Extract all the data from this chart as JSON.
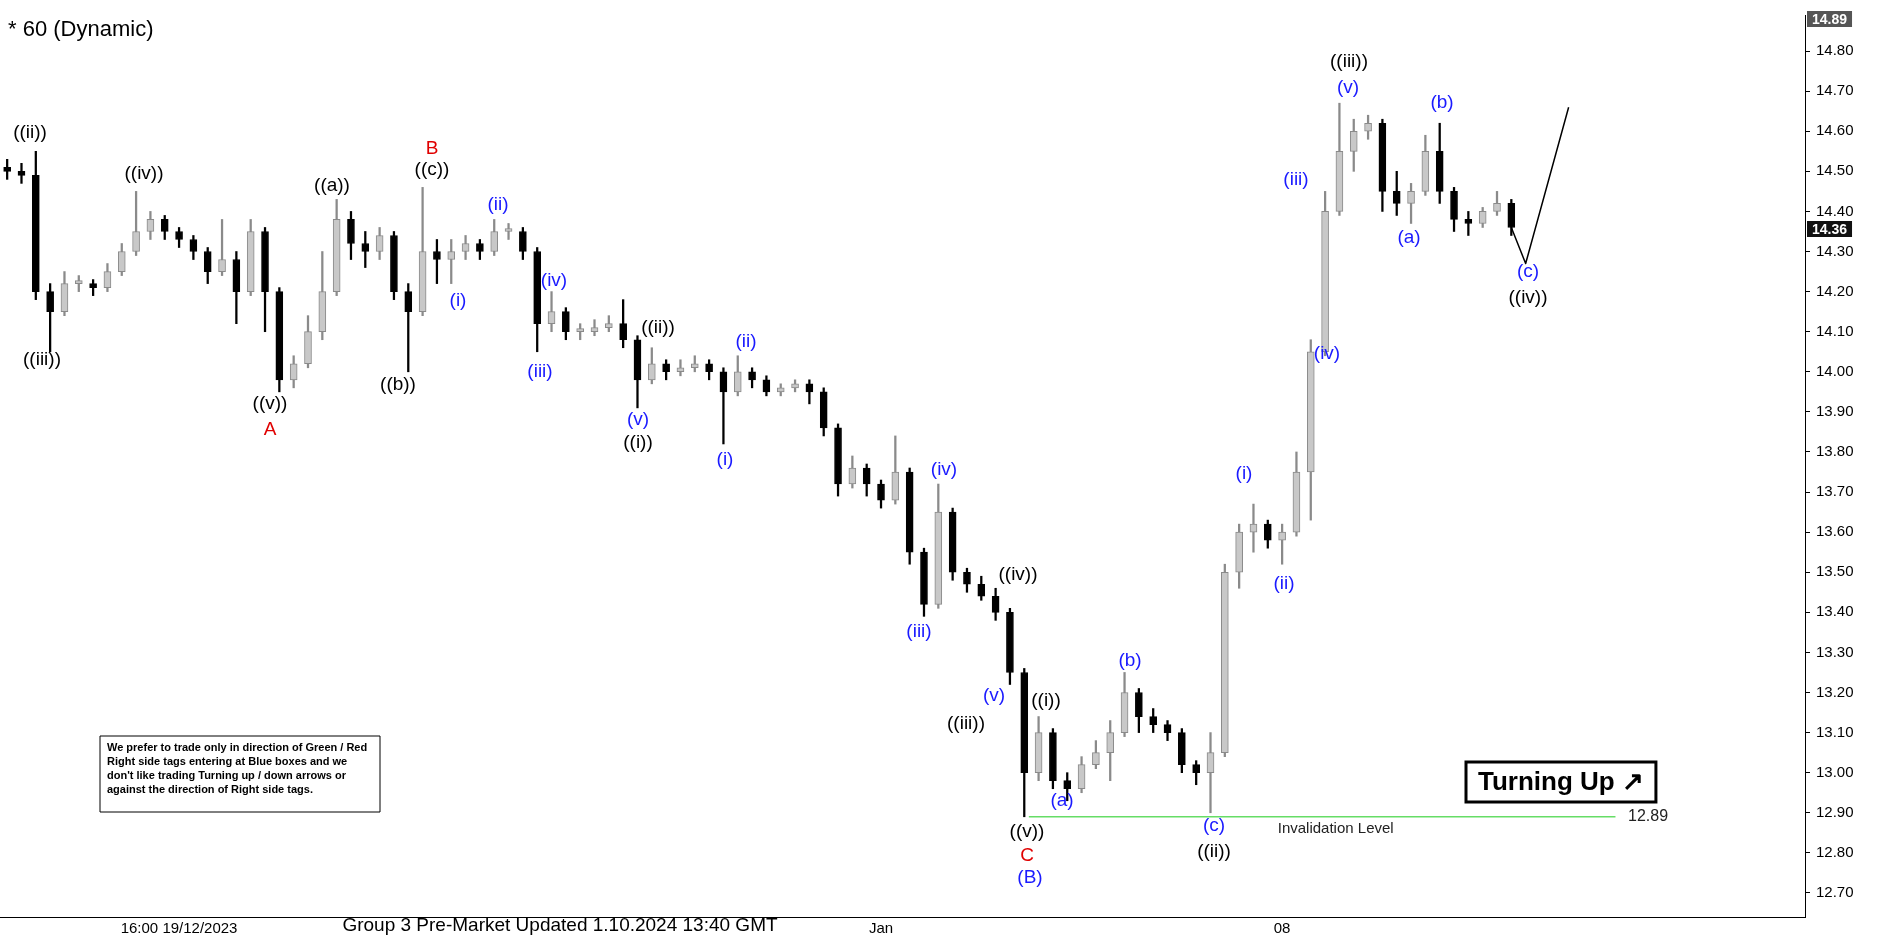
{
  "chart_data": {
    "type": "candlestick",
    "title": "* 60 (Dynamic)",
    "subtitle": "Group 3 Pre-Market Updated 1.10.2024 13:40 GMT",
    "categories": [
      null,
      null,
      null,
      null,
      null,
      null,
      null,
      null,
      null,
      null,
      null,
      null,
      "16:00 19/12/2023",
      null,
      null,
      null,
      null,
      null,
      null,
      null,
      null,
      null,
      null,
      null,
      null,
      null,
      null,
      null,
      null,
      null,
      null,
      null,
      null,
      null,
      null,
      null,
      null,
      null,
      null,
      null,
      null,
      null,
      null,
      null,
      null,
      null,
      null,
      null,
      null,
      null,
      null,
      null,
      null,
      null,
      null,
      null,
      null,
      null,
      null,
      null,
      null,
      "Jan",
      null,
      null,
      null,
      null,
      null,
      null,
      null,
      null,
      null,
      null,
      null,
      null,
      null,
      null,
      null,
      null,
      null,
      null,
      null,
      null,
      null,
      null,
      null,
      null,
      null,
      null,
      null,
      "08",
      null,
      null,
      null,
      null,
      null,
      null,
      null,
      null,
      null,
      null,
      null,
      null,
      null,
      null,
      null,
      null,
      null,
      null,
      null,
      null,
      null,
      null,
      null,
      null,
      null,
      null,
      null,
      null,
      null,
      null,
      null,
      null,
      null,
      null,
      null,
      null
    ],
    "ohlc": [
      [
        14.51,
        14.53,
        14.48,
        14.5
      ],
      [
        14.5,
        14.52,
        14.47,
        14.49
      ],
      [
        14.49,
        14.55,
        14.18,
        14.2
      ],
      [
        14.2,
        14.22,
        14.05,
        14.15
      ],
      [
        14.15,
        14.25,
        14.14,
        14.22
      ],
      [
        14.22,
        14.24,
        14.2,
        14.22
      ],
      [
        14.22,
        14.23,
        14.19,
        14.21
      ],
      [
        14.21,
        14.27,
        14.2,
        14.25
      ],
      [
        14.25,
        14.32,
        14.24,
        14.3
      ],
      [
        14.3,
        14.45,
        14.29,
        14.35
      ],
      [
        14.35,
        14.4,
        14.33,
        14.38
      ],
      [
        14.38,
        14.39,
        14.33,
        14.35
      ],
      [
        14.35,
        14.36,
        14.31,
        14.33
      ],
      [
        14.33,
        14.34,
        14.28,
        14.3
      ],
      [
        14.3,
        14.31,
        14.22,
        14.25
      ],
      [
        14.25,
        14.38,
        14.24,
        14.28
      ],
      [
        14.28,
        14.3,
        14.12,
        14.2
      ],
      [
        14.2,
        14.38,
        14.19,
        14.35
      ],
      [
        14.35,
        14.36,
        14.1,
        14.2
      ],
      [
        14.2,
        14.21,
        13.95,
        13.98
      ],
      [
        13.98,
        14.04,
        13.96,
        14.02
      ],
      [
        14.02,
        14.14,
        14.01,
        14.1
      ],
      [
        14.1,
        14.3,
        14.08,
        14.2
      ],
      [
        14.2,
        14.43,
        14.19,
        14.38
      ],
      [
        14.38,
        14.4,
        14.28,
        14.32
      ],
      [
        14.32,
        14.35,
        14.26,
        14.3
      ],
      [
        14.3,
        14.36,
        14.28,
        14.34
      ],
      [
        14.34,
        14.35,
        14.18,
        14.2
      ],
      [
        14.2,
        14.22,
        14.0,
        14.15
      ],
      [
        14.15,
        14.46,
        14.14,
        14.3
      ],
      [
        14.3,
        14.33,
        14.22,
        14.28
      ],
      [
        14.28,
        14.33,
        14.22,
        14.3
      ],
      [
        14.3,
        14.34,
        14.28,
        14.32
      ],
      [
        14.32,
        14.33,
        14.28,
        14.3
      ],
      [
        14.3,
        14.38,
        14.29,
        14.35
      ],
      [
        14.35,
        14.37,
        14.33,
        14.35
      ],
      [
        14.35,
        14.36,
        14.28,
        14.3
      ],
      [
        14.3,
        14.31,
        14.05,
        14.12
      ],
      [
        14.12,
        14.2,
        14.1,
        14.15
      ],
      [
        14.15,
        14.16,
        14.08,
        14.1
      ],
      [
        14.1,
        14.12,
        14.08,
        14.1
      ],
      [
        14.1,
        14.13,
        14.09,
        14.11
      ],
      [
        14.11,
        14.14,
        14.1,
        14.12
      ],
      [
        14.12,
        14.18,
        14.06,
        14.08
      ],
      [
        14.08,
        14.09,
        13.91,
        13.98
      ],
      [
        13.98,
        14.06,
        13.97,
        14.02
      ],
      [
        14.02,
        14.03,
        13.98,
        14.0
      ],
      [
        14.0,
        14.03,
        13.99,
        14.01
      ],
      [
        14.01,
        14.04,
        14.0,
        14.02
      ],
      [
        14.02,
        14.03,
        13.98,
        14.0
      ],
      [
        14.0,
        14.01,
        13.82,
        13.95
      ],
      [
        13.95,
        14.04,
        13.94,
        14.0
      ],
      [
        14.0,
        14.01,
        13.96,
        13.98
      ],
      [
        13.98,
        13.99,
        13.94,
        13.95
      ],
      [
        13.95,
        13.97,
        13.94,
        13.96
      ],
      [
        13.96,
        13.98,
        13.95,
        13.97
      ],
      [
        13.97,
        13.98,
        13.92,
        13.95
      ],
      [
        13.95,
        13.96,
        13.84,
        13.86
      ],
      [
        13.86,
        13.87,
        13.69,
        13.72
      ],
      [
        13.72,
        13.79,
        13.71,
        13.76
      ],
      [
        13.76,
        13.77,
        13.69,
        13.72
      ],
      [
        13.72,
        13.73,
        13.66,
        13.68
      ],
      [
        13.68,
        13.84,
        13.67,
        13.75
      ],
      [
        13.75,
        13.76,
        13.52,
        13.55
      ],
      [
        13.55,
        13.56,
        13.39,
        13.42
      ],
      [
        13.42,
        13.72,
        13.41,
        13.65
      ],
      [
        13.65,
        13.66,
        13.48,
        13.5
      ],
      [
        13.5,
        13.51,
        13.45,
        13.47
      ],
      [
        13.47,
        13.49,
        13.43,
        13.44
      ],
      [
        13.44,
        13.46,
        13.38,
        13.4
      ],
      [
        13.4,
        13.41,
        13.22,
        13.25
      ],
      [
        13.25,
        13.26,
        12.89,
        13.0
      ],
      [
        13.0,
        13.14,
        12.98,
        13.1
      ],
      [
        13.1,
        13.11,
        12.96,
        12.98
      ],
      [
        12.98,
        13.0,
        12.93,
        12.96
      ],
      [
        12.96,
        13.04,
        12.95,
        13.02
      ],
      [
        13.02,
        13.08,
        13.01,
        13.05
      ],
      [
        13.05,
        13.13,
        12.98,
        13.1
      ],
      [
        13.1,
        13.25,
        13.09,
        13.2
      ],
      [
        13.2,
        13.21,
        13.1,
        13.14
      ],
      [
        13.14,
        13.16,
        13.1,
        13.12
      ],
      [
        13.12,
        13.13,
        13.08,
        13.1
      ],
      [
        13.1,
        13.11,
        13.0,
        13.02
      ],
      [
        13.02,
        13.03,
        12.97,
        13.0
      ],
      [
        13.0,
        13.1,
        12.9,
        13.05
      ],
      [
        13.05,
        13.52,
        13.04,
        13.5
      ],
      [
        13.5,
        13.62,
        13.46,
        13.6
      ],
      [
        13.6,
        13.67,
        13.55,
        13.62
      ],
      [
        13.62,
        13.63,
        13.56,
        13.58
      ],
      [
        13.58,
        13.62,
        13.52,
        13.6
      ],
      [
        13.6,
        13.8,
        13.59,
        13.75
      ],
      [
        13.75,
        14.08,
        13.63,
        14.05
      ],
      [
        14.05,
        14.45,
        14.04,
        14.4
      ],
      [
        14.4,
        14.67,
        14.39,
        14.55
      ],
      [
        14.55,
        14.63,
        14.5,
        14.6
      ],
      [
        14.6,
        14.64,
        14.58,
        14.62
      ],
      [
        14.62,
        14.63,
        14.4,
        14.45
      ],
      [
        14.45,
        14.5,
        14.39,
        14.42
      ],
      [
        14.42,
        14.47,
        14.37,
        14.45
      ],
      [
        14.45,
        14.59,
        14.44,
        14.55
      ],
      [
        14.55,
        14.62,
        14.42,
        14.45
      ],
      [
        14.45,
        14.46,
        14.35,
        14.38
      ],
      [
        14.38,
        14.4,
        14.34,
        14.37
      ],
      [
        14.37,
        14.41,
        14.36,
        14.4
      ],
      [
        14.4,
        14.45,
        14.39,
        14.42
      ],
      [
        14.42,
        14.43,
        14.34,
        14.36
      ],
      null,
      null,
      null,
      null,
      null,
      null,
      null,
      null,
      null,
      null,
      null,
      null,
      null,
      null,
      null,
      null,
      null,
      null,
      null,
      null
    ],
    "series": [
      {
        "type": "line",
        "color": "#000000",
        "values": [
          null,
          null,
          null,
          null,
          null,
          null,
          null,
          null,
          null,
          null,
          null,
          null,
          null,
          null,
          null,
          null,
          null,
          null,
          null,
          null,
          null,
          null,
          null,
          null,
          null,
          null,
          null,
          null,
          null,
          null,
          null,
          null,
          null,
          null,
          null,
          null,
          null,
          null,
          null,
          null,
          null,
          null,
          null,
          null,
          null,
          null,
          null,
          null,
          null,
          null,
          null,
          null,
          null,
          null,
          null,
          null,
          null,
          null,
          null,
          null,
          null,
          null,
          null,
          null,
          null,
          null,
          null,
          null,
          null,
          null,
          null,
          null,
          null,
          null,
          null,
          null,
          null,
          null,
          null,
          null,
          null,
          null,
          null,
          null,
          null,
          null,
          null,
          null,
          null,
          null,
          null,
          null,
          null,
          null,
          null,
          null,
          null,
          null,
          null,
          null,
          null,
          null,
          null,
          null,
          null,
          14.36,
          14.27,
          null,
          null,
          14.66,
          null,
          null,
          null,
          null,
          null,
          null,
          null,
          null,
          null,
          null,
          null,
          null,
          null,
          null,
          null,
          null
        ]
      }
    ],
    "marker": "none",
    "ylim": [
      12.64,
      14.89
    ],
    "yticks": [
      {
        "value": 12.7,
        "label": "12.70"
      },
      {
        "value": 12.8,
        "label": "12.80"
      },
      {
        "value": 12.9,
        "label": "12.90"
      },
      {
        "value": 13.0,
        "label": "13.00"
      },
      {
        "value": 13.1,
        "label": "13.10"
      },
      {
        "value": 13.2,
        "label": "13.20"
      },
      {
        "value": 13.3,
        "label": "13.30"
      },
      {
        "value": 13.4,
        "label": "13.40"
      },
      {
        "value": 13.5,
        "label": "13.50"
      },
      {
        "value": 13.6,
        "label": "13.60"
      },
      {
        "value": 13.7,
        "label": "13.70"
      },
      {
        "value": 13.8,
        "label": "13.80"
      },
      {
        "value": 13.9,
        "label": "13.90"
      },
      {
        "value": 14.0,
        "label": "14.00"
      },
      {
        "value": 14.1,
        "label": "14.10"
      },
      {
        "value": 14.2,
        "label": "14.20"
      },
      {
        "value": 14.3,
        "label": "14.30"
      },
      {
        "value": 14.4,
        "label": "14.40"
      },
      {
        "value": 14.5,
        "label": "14.50"
      },
      {
        "value": 14.6,
        "label": "14.60"
      },
      {
        "value": 14.7,
        "label": "14.70"
      },
      {
        "value": 14.8,
        "label": "14.80"
      }
    ],
    "grid": false,
    "ref_lines": [
      {
        "axis": "y",
        "value": 12.89,
        "label": "Invalidation Level",
        "color": "#66dd66"
      }
    ],
    "annotations": [
      "We prefer to trade only in direction of Green / Red Right side tags entering at Blue boxes and we don't like trading Turning up / down arrows or against the direction of Right side tags.",
      "Turning Up ↗",
      "14.89",
      "14.36",
      "12.89",
      "((ii))",
      "((iii))",
      "((iv))",
      "((v))",
      "A",
      "((a))",
      "((b))",
      "B",
      "((c))",
      "(i)",
      "(ii)",
      "(iii)",
      "(iv)",
      "(v)",
      "((i))",
      "((ii))",
      "(i)",
      "(ii)",
      "(iii)",
      "(iv)",
      "(v)",
      "((iii))",
      "((iv))",
      "((i))",
      "((v))",
      "C",
      "(B)",
      "(a)",
      "(b)",
      "(c)",
      "((ii))",
      "(i)",
      "(ii)",
      "(iii)",
      "(iv)",
      "(v)",
      "((iii))",
      "(a)",
      "(b)",
      "(c)",
      "((iv))"
    ]
  }
}
